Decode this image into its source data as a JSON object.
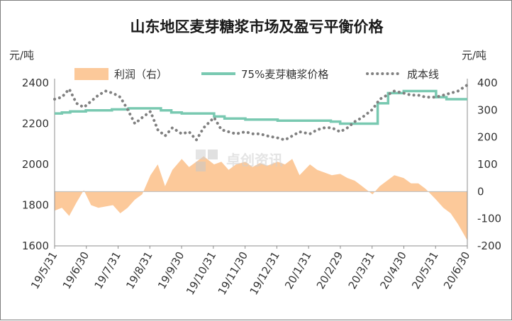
{
  "chart_data": {
    "type": "line",
    "title": "山东地区麦芽糖浆市场及盈亏平衡价格",
    "left_unit": "元/吨",
    "right_unit": "元/吨",
    "x_tick_labels": [
      "19/5/31",
      "19/6/30",
      "19/7/31",
      "19/8/31",
      "19/9/30",
      "19/10/31",
      "19/11/30",
      "19/12/31",
      "20/1/31",
      "20/2/29",
      "20/3/31",
      "20/4/30",
      "20/5/31",
      "20/6/30"
    ],
    "left_axis": {
      "min": 1600,
      "max": 2400,
      "ticks": [
        1600,
        1800,
        2000,
        2200,
        2400
      ]
    },
    "right_axis": {
      "min": -200,
      "max": 400,
      "ticks": [
        -200,
        -100,
        0,
        100,
        200,
        300,
        400
      ]
    },
    "legend_position": "top",
    "grid": false,
    "watermark": "卓创资讯",
    "series": [
      {
        "name": "利润（右）",
        "type": "area",
        "axis": "right",
        "color": "#fcc99a",
        "x": [
          "2019-05-31",
          "2019-06-07",
          "2019-06-14",
          "2019-06-21",
          "2019-06-28",
          "2019-07-05",
          "2019-07-12",
          "2019-07-19",
          "2019-07-26",
          "2019-08-02",
          "2019-08-09",
          "2019-08-16",
          "2019-08-23",
          "2019-08-31",
          "2019-09-07",
          "2019-09-14",
          "2019-09-21",
          "2019-09-30",
          "2019-10-07",
          "2019-10-14",
          "2019-10-21",
          "2019-10-31",
          "2019-11-07",
          "2019-11-14",
          "2019-11-21",
          "2019-11-30",
          "2019-12-07",
          "2019-12-14",
          "2019-12-21",
          "2019-12-31",
          "2020-01-07",
          "2020-01-14",
          "2020-01-21",
          "2020-01-31",
          "2020-02-07",
          "2020-02-14",
          "2020-02-21",
          "2020-02-29",
          "2020-03-07",
          "2020-03-14",
          "2020-03-21",
          "2020-03-31",
          "2020-04-07",
          "2020-04-14",
          "2020-04-21",
          "2020-04-30",
          "2020-05-07",
          "2020-05-14",
          "2020-05-21",
          "2020-05-31",
          "2020-06-07",
          "2020-06-14",
          "2020-06-21",
          "2020-06-30"
        ],
        "values": [
          -70,
          -60,
          -90,
          -40,
          5,
          -50,
          -60,
          -55,
          -50,
          -80,
          -60,
          -30,
          -10,
          60,
          100,
          20,
          80,
          120,
          90,
          110,
          130,
          100,
          110,
          80,
          100,
          110,
          90,
          105,
          95,
          110,
          100,
          120,
          60,
          100,
          80,
          70,
          60,
          65,
          50,
          40,
          20,
          -10,
          20,
          40,
          60,
          50,
          30,
          30,
          10,
          -30,
          -60,
          -80,
          -120,
          -180
        ]
      },
      {
        "name": "75%麦芽糖浆价格",
        "type": "line",
        "axis": "left",
        "color": "#79c9b1",
        "x": [
          "2019-05-31",
          "2019-06-07",
          "2019-06-15",
          "2019-06-30",
          "2019-07-15",
          "2019-07-25",
          "2019-08-10",
          "2019-08-31",
          "2019-09-10",
          "2019-09-20",
          "2019-09-30",
          "2019-10-31",
          "2019-11-10",
          "2019-11-30",
          "2019-12-31",
          "2020-01-31",
          "2020-02-20",
          "2020-02-29",
          "2020-03-15",
          "2020-03-31",
          "2020-04-05",
          "2020-04-15",
          "2020-04-30",
          "2020-05-15",
          "2020-05-31",
          "2020-06-10",
          "2020-06-30"
        ],
        "values": [
          2250,
          2255,
          2260,
          2265,
          2265,
          2270,
          2275,
          2275,
          2265,
          2255,
          2250,
          2235,
          2225,
          2220,
          2215,
          2215,
          2210,
          2200,
          2200,
          2200,
          2300,
          2350,
          2360,
          2360,
          2330,
          2320,
          2320
        ]
      },
      {
        "name": "成本线",
        "type": "dotted-line",
        "axis": "left",
        "color": "#808080",
        "x": [
          "2019-05-31",
          "2019-06-07",
          "2019-06-14",
          "2019-06-21",
          "2019-06-28",
          "2019-07-05",
          "2019-07-12",
          "2019-07-19",
          "2019-07-26",
          "2019-08-02",
          "2019-08-09",
          "2019-08-16",
          "2019-08-23",
          "2019-08-31",
          "2019-09-07",
          "2019-09-14",
          "2019-09-21",
          "2019-09-30",
          "2019-10-07",
          "2019-10-14",
          "2019-10-21",
          "2019-10-31",
          "2019-11-07",
          "2019-11-14",
          "2019-11-21",
          "2019-11-30",
          "2019-12-07",
          "2019-12-14",
          "2019-12-21",
          "2019-12-31",
          "2020-01-07",
          "2020-01-14",
          "2020-01-21",
          "2020-01-31",
          "2020-02-07",
          "2020-02-14",
          "2020-02-21",
          "2020-02-29",
          "2020-03-07",
          "2020-03-14",
          "2020-03-21",
          "2020-03-31",
          "2020-04-07",
          "2020-04-14",
          "2020-04-21",
          "2020-04-30",
          "2020-05-07",
          "2020-05-14",
          "2020-05-21",
          "2020-05-31",
          "2020-06-07",
          "2020-06-14",
          "2020-06-21",
          "2020-06-30"
        ],
        "values": [
          2320,
          2330,
          2370,
          2300,
          2280,
          2310,
          2340,
          2360,
          2350,
          2330,
          2270,
          2200,
          2230,
          2260,
          2170,
          2140,
          2180,
          2150,
          2160,
          2120,
          2180,
          2230,
          2170,
          2160,
          2150,
          2160,
          2150,
          2150,
          2140,
          2130,
          2120,
          2140,
          2160,
          2150,
          2170,
          2180,
          2180,
          2160,
          2180,
          2210,
          2230,
          2270,
          2320,
          2340,
          2360,
          2350,
          2340,
          2340,
          2330,
          2330,
          2340,
          2350,
          2360,
          2390
        ]
      }
    ]
  }
}
